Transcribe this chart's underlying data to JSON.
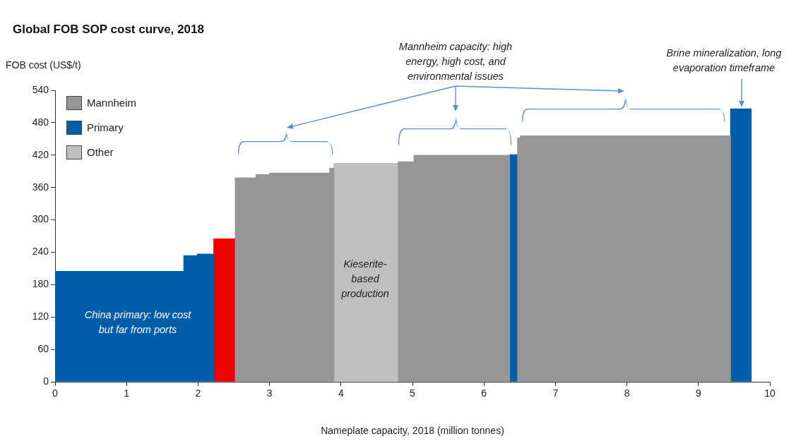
{
  "chart_data": {
    "type": "histogram",
    "title": "Global FOB SOP cost curve, 2018",
    "xlabel": "Nameplate capacity, 2018 (million tonnes)",
    "ylabel": "FOB cost (US$/t)",
    "bins": [
      0,
      1.8,
      1.99,
      2.22,
      2.52,
      2.81,
      3.0,
      3.84,
      3.9,
      4.8,
      5.02,
      6.36,
      6.47,
      6.51,
      9.45,
      9.74
    ],
    "series": [
      {
        "name": "Mannheim",
        "color": "#969696",
        "values": [
          null,
          null,
          null,
          null,
          378,
          384,
          387,
          396,
          null,
          408,
          420,
          null,
          452,
          456,
          null
        ]
      },
      {
        "name": "Primary",
        "color": "#005daa",
        "values": [
          205,
          234,
          237,
          null,
          null,
          null,
          null,
          null,
          null,
          null,
          null,
          421,
          null,
          null,
          506
        ]
      },
      {
        "name": "Other",
        "color": "#bfbfbf",
        "values": [
          null,
          null,
          null,
          null,
          null,
          null,
          null,
          null,
          405,
          null,
          null,
          null,
          null,
          null,
          null
        ]
      },
      {
        "color": "#f20000",
        "values": [
          null,
          null,
          null,
          265,
          null,
          null,
          null,
          null,
          null,
          null,
          null,
          null,
          null,
          null,
          null
        ]
      }
    ],
    "xlim": [
      0,
      10
    ],
    "xticks": [
      0,
      1,
      2,
      3,
      4,
      5,
      6,
      7,
      8,
      9,
      10
    ],
    "ylim": [
      0,
      540
    ],
    "yticks": [
      0,
      60,
      120,
      180,
      240,
      300,
      360,
      420,
      480,
      540
    ],
    "grid": false,
    "legend": "top left",
    "annotations": [
      "China primary: low cost but far from ports",
      "Kieserite-based production",
      "Mannheim capacity: high energy, high cost, and environmental issues",
      "Brine mineralization, long evaporation timeframe"
    ]
  }
}
